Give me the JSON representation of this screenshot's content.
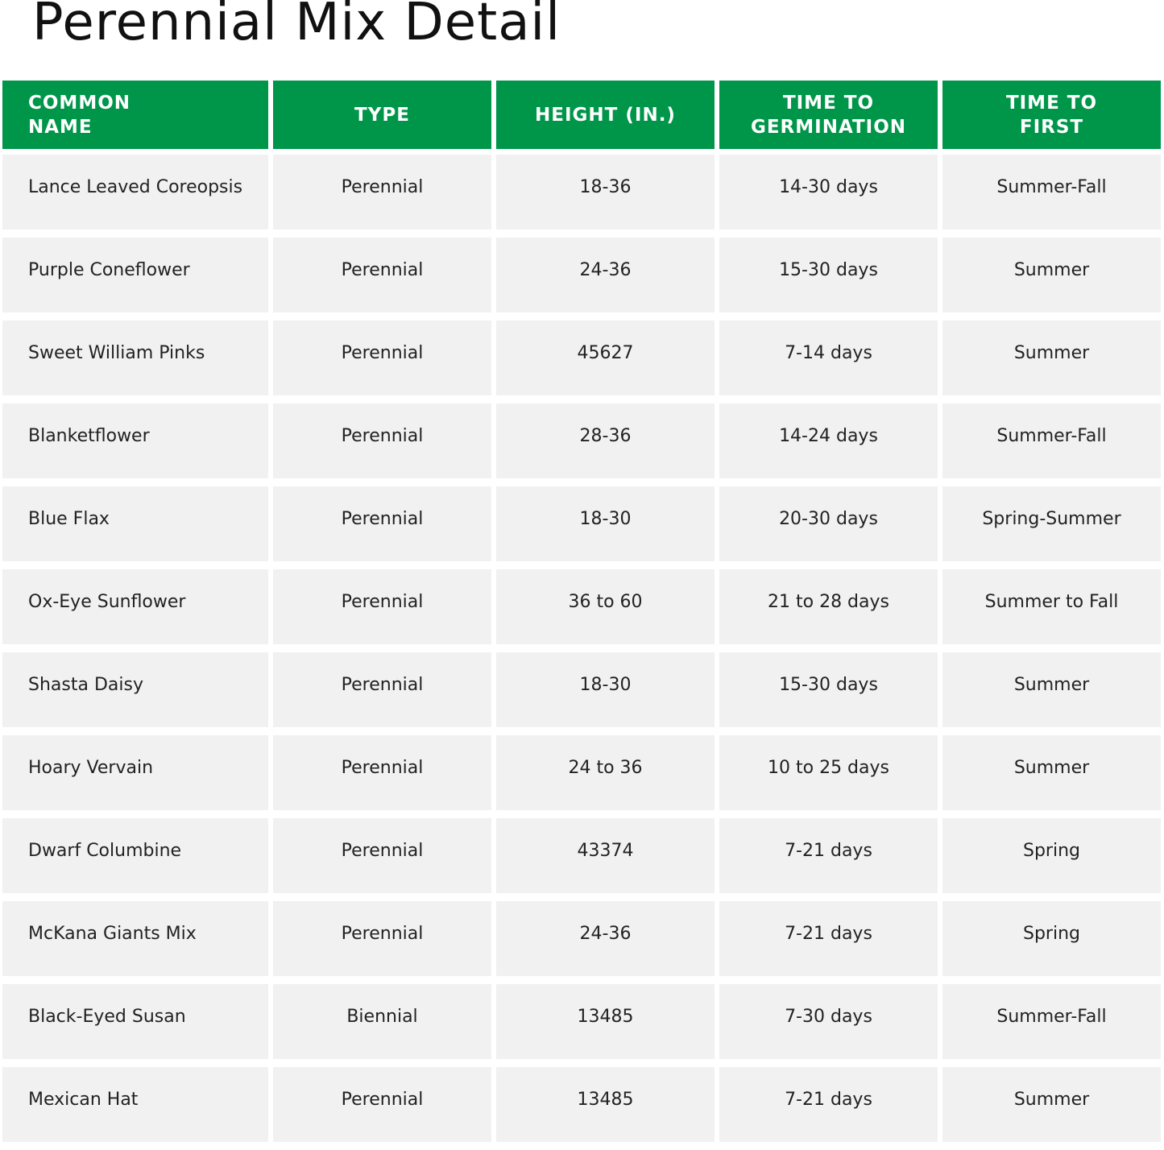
{
  "title": "Perennial Mix Detail",
  "colors": {
    "header_bg": "#00964a",
    "cell_bg": "#f1f1f1"
  },
  "headers": [
    "COMMON\nNAME",
    "TYPE",
    "HEIGHT (IN.)",
    "TIME TO\nGERMINATION",
    "TIME TO\nFIRST"
  ],
  "rows": [
    [
      "Lance Leaved Coreopsis",
      "Perennial",
      "18-36",
      "14-30 days",
      "Summer-Fall"
    ],
    [
      "Purple Coneflower",
      "Perennial",
      "24-36",
      "15-30 days",
      "Summer"
    ],
    [
      "Sweet William Pinks",
      "Perennial",
      "45627",
      "7-14 days",
      "Summer"
    ],
    [
      "Blanketflower",
      "Perennial",
      "28-36",
      "14-24 days",
      "Summer-Fall"
    ],
    [
      "Blue Flax",
      "Perennial",
      "18-30",
      "20-30 days",
      "Spring-Summer"
    ],
    [
      "Ox-Eye Sunflower",
      "Perennial",
      "36 to 60",
      "21 to 28 days",
      "Summer to Fall"
    ],
    [
      "Shasta Daisy",
      "Perennial",
      "18-30",
      "15-30 days",
      "Summer"
    ],
    [
      "Hoary Vervain",
      "Perennial",
      "24 to 36",
      "10 to 25 days",
      "Summer"
    ],
    [
      "Dwarf Columbine",
      "Perennial",
      "43374",
      "7-21 days",
      "Spring"
    ],
    [
      "McKana Giants Mix",
      "Perennial",
      "24-36",
      "7-21 days",
      "Spring"
    ],
    [
      "Black-Eyed Susan",
      "Biennial",
      "13485",
      "7-30 days",
      "Summer-Fall"
    ],
    [
      "Mexican Hat",
      "Perennial",
      "13485",
      "7-21 days",
      "Summer"
    ]
  ]
}
